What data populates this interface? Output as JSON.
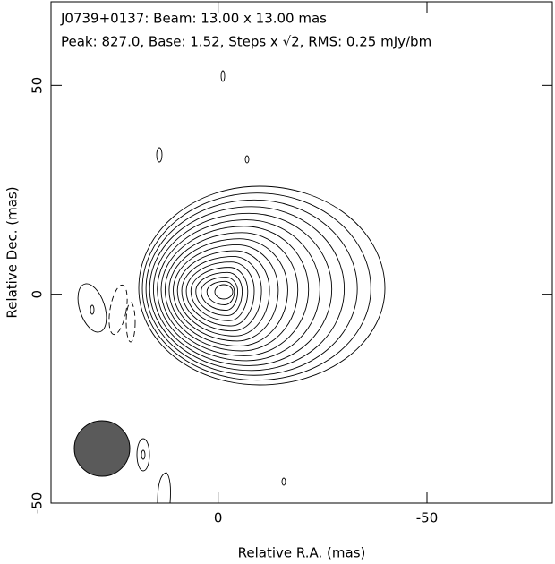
{
  "chart_data": {
    "type": "contour",
    "title_lines": [
      "J0739+0137: Beam: 13.00 x 13.00 mas",
      "Peak: 827.0, Base: 1.52, Steps x √2, RMS: 0.25 mJy/bm"
    ],
    "x_label": "Relative R.A. (mas)",
    "y_label": "Relative Dec. (mas)",
    "xlim": [
      40,
      -80
    ],
    "ylim": [
      -50,
      70
    ],
    "xticks": [
      0,
      -50
    ],
    "yticks": [
      -50,
      0,
      50
    ],
    "beam_color": "#5a5a5a"
  }
}
